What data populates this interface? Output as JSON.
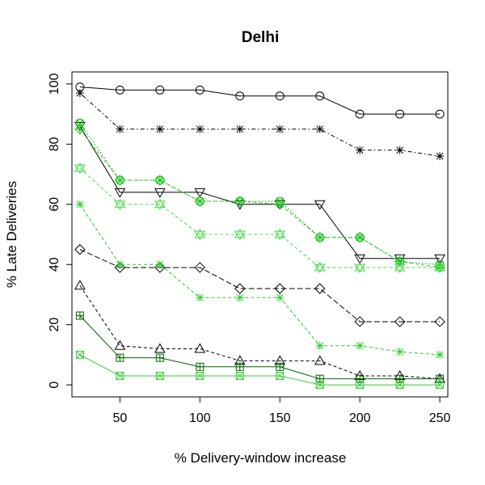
{
  "chart_data": {
    "type": "line",
    "title": "Delhi",
    "xlabel": "% Delivery-window increase",
    "ylabel": "% Late Deliveries",
    "xlim": [
      20,
      255
    ],
    "ylim": [
      -4,
      104
    ],
    "xticks": [
      50,
      100,
      150,
      200,
      250
    ],
    "yticks": [
      0,
      20,
      40,
      60,
      80,
      100
    ],
    "x": [
      25,
      50,
      75,
      100,
      125,
      150,
      175,
      200,
      225,
      250
    ],
    "series": [
      {
        "name": "series-circle",
        "marker": "circle",
        "color": "#000000",
        "dash": "solid",
        "values": [
          99,
          98,
          98,
          98,
          96,
          96,
          96,
          90,
          90,
          90
        ]
      },
      {
        "name": "series-asterisk-black",
        "marker": "asterisk",
        "color": "#000000",
        "dash": "dotdash",
        "values": [
          97,
          85,
          85,
          85,
          85,
          85,
          85,
          78,
          78,
          76
        ]
      },
      {
        "name": "series-triangle-down",
        "marker": "triangle-down",
        "color": "#000000",
        "dash": "solid",
        "values": [
          86,
          64,
          64,
          64,
          60,
          60,
          60,
          42,
          42,
          42
        ]
      },
      {
        "name": "series-diamond",
        "marker": "diamond",
        "color": "#000000",
        "dash": "longdash",
        "values": [
          45,
          39,
          39,
          39,
          32,
          32,
          32,
          21,
          21,
          21
        ]
      },
      {
        "name": "series-triangle-up",
        "marker": "triangle-up",
        "color": "#000000",
        "dash": "dashed",
        "values": [
          33,
          13,
          12,
          12,
          8,
          8,
          8,
          3,
          3,
          2
        ]
      },
      {
        "name": "series-x-green",
        "marker": "x",
        "color": "#00aa00",
        "dash": "dotted",
        "values": [
          87,
          68,
          68,
          61,
          61,
          61,
          49,
          49,
          41,
          40
        ]
      },
      {
        "name": "series-diamond-plus-green",
        "marker": "diamond-plus",
        "color": "#22cc22",
        "dash": "dashed",
        "values": [
          85,
          68,
          68,
          61,
          61,
          60,
          49,
          49,
          41,
          39
        ]
      },
      {
        "name": "series-star-green",
        "marker": "star",
        "color": "#44dd44",
        "dash": "dashed",
        "values": [
          72,
          60,
          60,
          50,
          50,
          50,
          39,
          39,
          39,
          39
        ]
      },
      {
        "name": "series-asterisk-green",
        "marker": "asterisk",
        "color": "#22cc22",
        "dash": "dashed",
        "values": [
          60,
          40,
          40,
          29,
          29,
          29,
          13,
          13,
          11,
          10
        ]
      },
      {
        "name": "series-square-plus-darkgreen",
        "marker": "square-plus",
        "color": "#006600",
        "dash": "solid",
        "values": [
          23,
          9,
          9,
          6,
          6,
          6,
          2,
          2,
          2,
          2
        ]
      },
      {
        "name": "series-square-x-green",
        "marker": "square-x",
        "color": "#33cc33",
        "dash": "solid",
        "values": [
          10,
          3,
          3,
          3,
          3,
          3,
          0,
          0,
          0,
          0
        ]
      }
    ]
  }
}
